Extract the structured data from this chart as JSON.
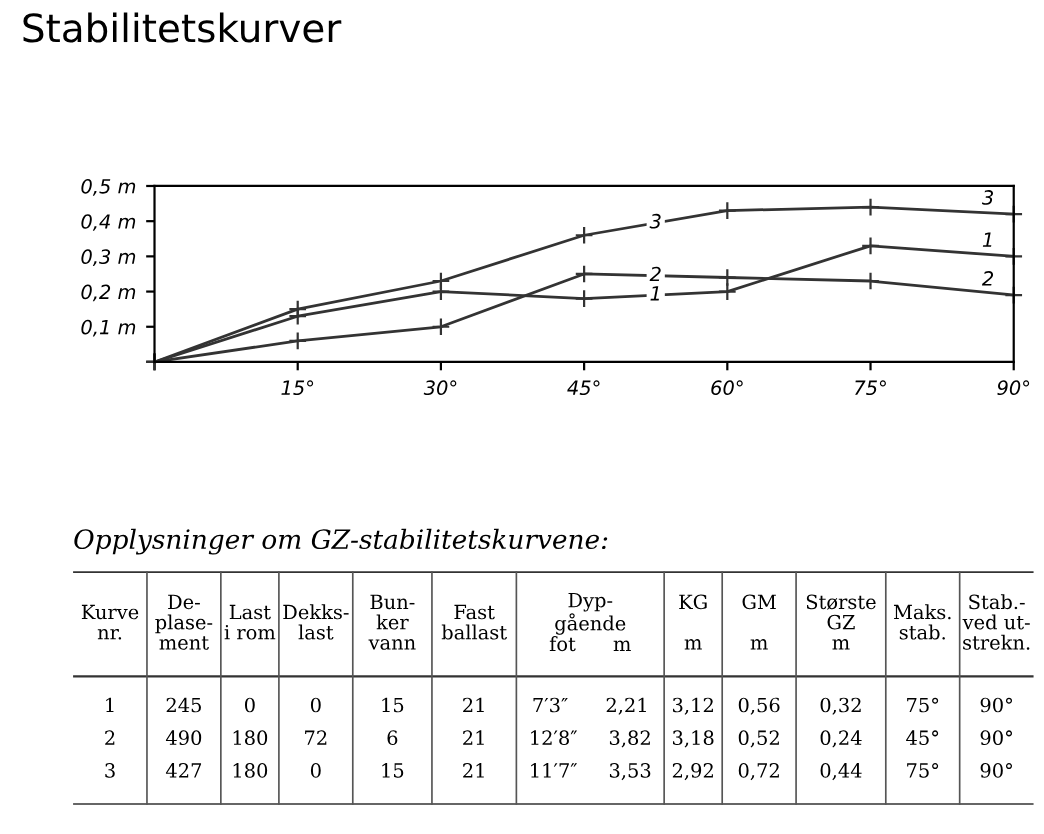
{
  "chart_data": [
    {
      "type": "line",
      "title": "Stabilitetskurver",
      "x": [
        0,
        15,
        30,
        45,
        60,
        75,
        90
      ],
      "xlim": [
        0,
        90
      ],
      "xticks": [
        {
          "value": 15,
          "label": "15°"
        },
        {
          "value": 30,
          "label": "30°"
        },
        {
          "value": 45,
          "label": "45°"
        },
        {
          "value": 60,
          "label": "60°"
        },
        {
          "value": 75,
          "label": "75°"
        },
        {
          "value": 90,
          "label": "90°"
        }
      ],
      "ylim": [
        0,
        0.5
      ],
      "yticks": [
        {
          "value": 0.1,
          "label": "0,1 m"
        },
        {
          "value": 0.2,
          "label": "0,2 m"
        },
        {
          "value": 0.3,
          "label": "0,3 m"
        },
        {
          "value": 0.4,
          "label": "0,4 m"
        },
        {
          "value": 0.5,
          "label": "0,5 m"
        }
      ],
      "grid": false,
      "legend": false,
      "marker": "cross",
      "line_style": "solid",
      "series": [
        {
          "name": "3",
          "color": "#333333",
          "values": [
            0,
            0.15,
            0.23,
            0.36,
            0.43,
            0.44,
            0.42
          ]
        },
        {
          "name": "2",
          "color": "#333333",
          "values": [
            0,
            0.06,
            0.1,
            0.25,
            0.24,
            0.23,
            0.19
          ]
        },
        {
          "name": "1",
          "color": "#333333",
          "values": [
            0,
            0.13,
            0.2,
            0.18,
            0.2,
            0.33,
            0.3
          ]
        }
      ]
    },
    {
      "type": "other",
      "title": "Opplysninger om GZ-stabilitetskurvene:",
      "categories": [
        "Kurve\nnr.",
        "De-\nplase-\nment",
        "Last\ni rom",
        "Dekks-\nlast",
        "Bun-\nker\nvann",
        "Fast\nballast",
        "Dyp-\ngående\nfot      m",
        "KG\n\nm",
        "GM\n\nm",
        "Største\nGZ\nm",
        "Maks.\nstab.",
        "Stab.-\nved ut-\nstrekn."
      ],
      "annotations": [
        "1",
        "245",
        "0",
        "0",
        "15",
        "21",
        "7′3″      2,21",
        "3,12",
        "0,56",
        "0,32",
        "75°",
        "90°",
        "2",
        "490",
        "180",
        "72",
        "6",
        "21",
        "12′8″     3,82",
        "3,18",
        "0,52",
        "0,24",
        "45°",
        "90°",
        "3",
        "427",
        "180",
        "0",
        "15",
        "21",
        "11′7″     3,53",
        "2,92",
        "0,72",
        "0,44",
        "75°",
        "90°"
      ]
    }
  ]
}
